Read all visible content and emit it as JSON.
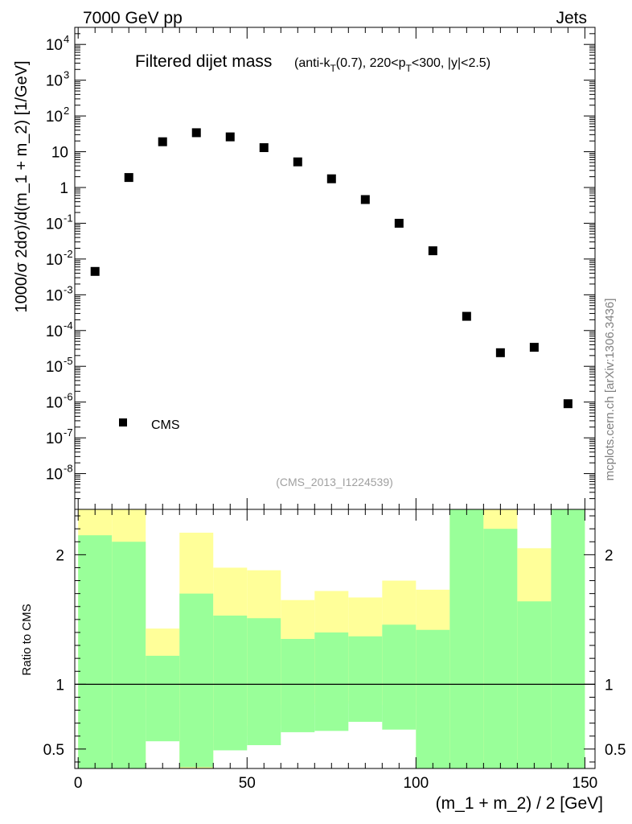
{
  "header": {
    "left": "7000 GeV pp",
    "right": "Jets"
  },
  "side_label": "mcplots.cern.ch [arXiv:1306.3436]",
  "analysis_id": "(CMS_2013_I1224539)",
  "chart_data": [
    {
      "type": "scatter",
      "panel": "main",
      "title_main": "Filtered dijet mass",
      "title_sub_parts": [
        "(anti-k",
        "T",
        "(0.7), 220<p",
        "T",
        "<300, |y|<2.5)"
      ],
      "ylabel": "1000/σ 2dσ)/d(m_1 + m_2) [1/GeV]",
      "yscale": "log",
      "ylim": [
        1e-09,
        30000.0
      ],
      "xlim": [
        -1,
        153
      ],
      "series": [
        {
          "name": "CMS",
          "x": [
            5,
            15,
            25,
            35,
            45,
            55,
            65,
            75,
            85,
            95,
            105,
            115,
            125,
            135,
            145
          ],
          "values": [
            0.0045,
            1.9,
            19,
            34,
            26,
            13,
            5.2,
            1.75,
            0.46,
            0.1,
            0.017,
            0.00025,
            2.4e-05,
            3.4e-05,
            9e-07
          ]
        }
      ],
      "legend": [
        "CMS"
      ],
      "yticks": [
        {
          "value": 10000.0,
          "label": "10",
          "exp": "4"
        },
        {
          "value": 1000.0,
          "label": "10",
          "exp": "3"
        },
        {
          "value": 100.0,
          "label": "10",
          "exp": "2"
        },
        {
          "value": 10,
          "label": "10",
          "exp": ""
        },
        {
          "value": 1,
          "label": "1",
          "exp": ""
        },
        {
          "value": 0.1,
          "label": "10",
          "exp": "-1"
        },
        {
          "value": 0.01,
          "label": "10",
          "exp": "-2"
        },
        {
          "value": 0.001,
          "label": "10",
          "exp": "-3"
        },
        {
          "value": 0.0001,
          "label": "10",
          "exp": "-4"
        },
        {
          "value": 1e-05,
          "label": "10",
          "exp": "-5"
        },
        {
          "value": 1e-06,
          "label": "10",
          "exp": "-6"
        },
        {
          "value": 1e-07,
          "label": "10",
          "exp": "-7"
        },
        {
          "value": 1e-08,
          "label": "10",
          "exp": "-8"
        }
      ]
    },
    {
      "type": "area",
      "panel": "ratio",
      "ylabel": "Ratio to CMS",
      "xlabel": "(m_1 + m_2) / 2 [GeV]",
      "ylim": [
        0.35,
        2.35
      ],
      "xlim": [
        -1,
        153
      ],
      "reference_line": 1,
      "bins": [
        0,
        10,
        20,
        30,
        40,
        50,
        60,
        70,
        80,
        90,
        100,
        110,
        120,
        130,
        140,
        150
      ],
      "yellow_up": [
        2.4,
        2.4,
        1.43,
        2.17,
        1.9,
        1.88,
        1.65,
        1.72,
        1.67,
        1.8,
        1.73,
        2.4,
        2.4,
        2.05,
        2.4
      ],
      "yellow_down": [
        0.3,
        0.3,
        0.81,
        0.3,
        0.6,
        0.68,
        0.84,
        0.85,
        0.87,
        0.84,
        0.3,
        0.38,
        0.38,
        0.42,
        0.3
      ],
      "green_up": [
        2.15,
        2.1,
        1.22,
        1.7,
        1.53,
        1.51,
        1.35,
        1.4,
        1.37,
        1.46,
        1.42,
        2.4,
        2.2,
        1.64,
        2.4
      ],
      "green_down": [
        0.3,
        0.3,
        0.56,
        0.36,
        0.49,
        0.53,
        0.63,
        0.64,
        0.71,
        0.65,
        0.3,
        0.3,
        0.3,
        0.3,
        0.3
      ],
      "yticks": [
        {
          "value": 2,
          "label": "2"
        },
        {
          "value": 1,
          "label": "1"
        },
        {
          "value": 0.5,
          "label": "0.5"
        }
      ],
      "xticks": [
        {
          "value": 0,
          "label": "0"
        },
        {
          "value": 50,
          "label": "50"
        },
        {
          "value": 100,
          "label": "100"
        },
        {
          "value": 150,
          "label": "150"
        }
      ]
    }
  ],
  "colors": {
    "green": "#99ff99",
    "yellow": "#ffff99",
    "marker": "#000000",
    "gray": "#808080"
  }
}
